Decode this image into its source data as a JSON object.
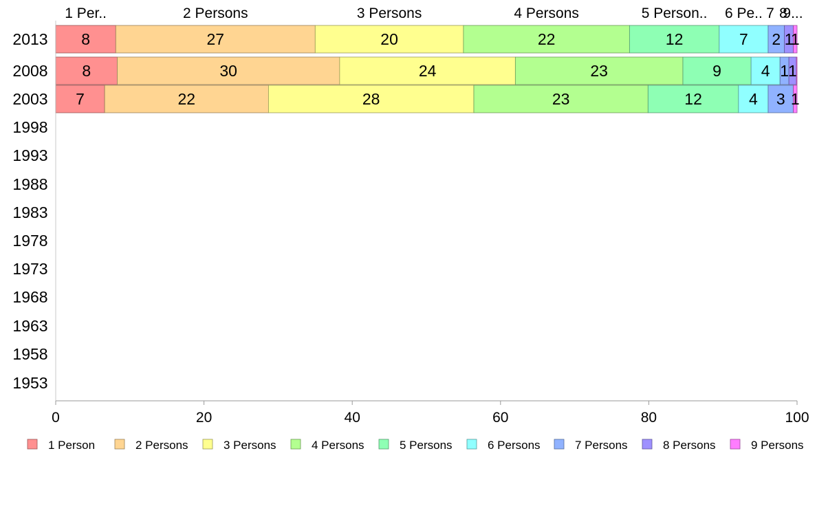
{
  "chart_data": {
    "type": "bar",
    "orientation": "horizontal",
    "stacked": true,
    "title": "",
    "xlabel": "",
    "ylabel": "",
    "xlim": [
      0,
      100
    ],
    "x_ticks": [
      "0",
      "20",
      "40",
      "60",
      "80",
      "100"
    ],
    "x_tick_values": [
      0,
      20,
      40,
      60,
      80,
      100
    ],
    "categories": [
      "2013",
      "2008",
      "2003",
      "1998",
      "1993",
      "1988",
      "1983",
      "1978",
      "1973",
      "1968",
      "1963",
      "1958",
      "1953"
    ],
    "top_labels": [
      "1 Per..",
      "2 Persons",
      "3 Persons",
      "4 Persons",
      "5 Person..",
      "6 Pe..",
      "7",
      "8",
      "9..."
    ],
    "legend_position": "bottom",
    "grid": false,
    "series": [
      {
        "name": "1 Person",
        "color": "#ff9090",
        "values": [
          8.1,
          8.3,
          6.6,
          null,
          null,
          null,
          null,
          null,
          null,
          null,
          null,
          null,
          null
        ],
        "labels": [
          "8",
          "8",
          "7"
        ]
      },
      {
        "name": "2 Persons",
        "color": "#ffd592",
        "values": [
          26.9,
          30.0,
          22.1,
          null,
          null,
          null,
          null,
          null,
          null,
          null,
          null,
          null,
          null
        ],
        "labels": [
          "27",
          "30",
          "22"
        ]
      },
      {
        "name": "3 Persons",
        "color": "#ffff8f",
        "values": [
          20.0,
          23.7,
          27.7,
          null,
          null,
          null,
          null,
          null,
          null,
          null,
          null,
          null,
          null
        ],
        "labels": [
          "20",
          "24",
          "28"
        ]
      },
      {
        "name": "4 Persons",
        "color": "#b3ff90",
        "values": [
          22.4,
          22.6,
          23.5,
          null,
          null,
          null,
          null,
          null,
          null,
          null,
          null,
          null,
          null
        ],
        "labels": [
          "22",
          "23",
          "23"
        ]
      },
      {
        "name": "5 Persons",
        "color": "#8effb4",
        "values": [
          12.1,
          9.2,
          12.2,
          null,
          null,
          null,
          null,
          null,
          null,
          null,
          null,
          null,
          null
        ],
        "labels": [
          "12",
          "9",
          "12"
        ]
      },
      {
        "name": "6 Persons",
        "color": "#90ffff",
        "values": [
          6.6,
          3.9,
          4.0,
          null,
          null,
          null,
          null,
          null,
          null,
          null,
          null,
          null,
          null
        ],
        "labels": [
          "7",
          "4",
          "4"
        ]
      },
      {
        "name": "7 Persons",
        "color": "#90b2ff",
        "values": [
          2.2,
          1.2,
          3.4,
          null,
          null,
          null,
          null,
          null,
          null,
          null,
          null,
          null,
          null
        ],
        "labels": [
          "2",
          "1",
          "3"
        ]
      },
      {
        "name": "8 Persons",
        "color": "#9e90ff",
        "values": [
          1.2,
          1.0,
          0.0,
          null,
          null,
          null,
          null,
          null,
          null,
          null,
          null,
          null,
          null
        ],
        "labels": [
          "1",
          "1",
          ""
        ]
      },
      {
        "name": "9 Persons",
        "color": "#ff7dff",
        "values": [
          0.5,
          0.1,
          0.5,
          null,
          null,
          null,
          null,
          null,
          null,
          null,
          null,
          null,
          null
        ],
        "labels": [
          "1",
          "",
          "1"
        ]
      }
    ]
  }
}
